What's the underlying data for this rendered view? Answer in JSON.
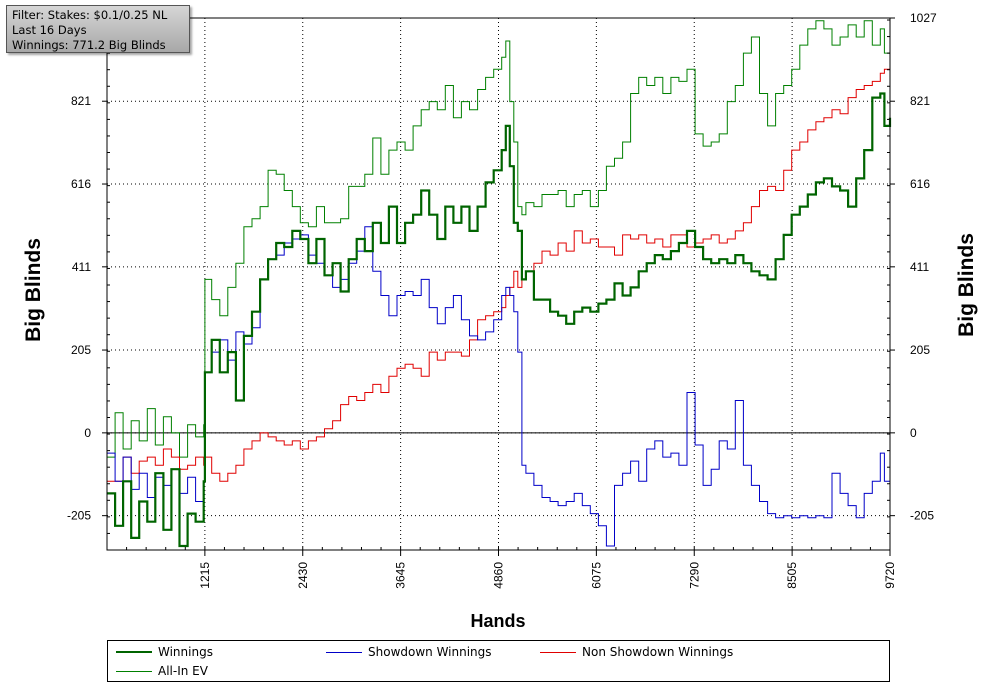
{
  "filter": {
    "line1": "Filter: Stakes: $0.1/0.25 NL",
    "line2": "Last 16 Days",
    "line3": "Winnings: 771.2 Big Blinds"
  },
  "chart_data": {
    "type": "line",
    "title": "",
    "xlabel": "Hands",
    "ylabel": "Big Blinds",
    "ylabel_right": "Big Blinds",
    "xlim": [
      0,
      9720
    ],
    "ylim": [
      -290,
      1027
    ],
    "x_ticks": [
      1215,
      2430,
      3645,
      4860,
      6075,
      7290,
      8505,
      9720
    ],
    "x_tick_labels": [
      "1215",
      "2430",
      "3645",
      "4860",
      "6075",
      "7290",
      "8505",
      "9720"
    ],
    "y_ticks": [
      -205,
      0,
      205,
      411,
      616,
      821,
      1027
    ],
    "y_tick_labels": [
      "-205",
      "0",
      "205",
      "411",
      "616",
      "821",
      "1027"
    ],
    "grid": true,
    "legend_position": "bottom",
    "series": [
      {
        "name": "Winnings",
        "color": "#006400",
        "style": "thick",
        "x": [
          0,
          100,
          200,
          300,
          400,
          500,
          600,
          700,
          800,
          900,
          1000,
          1100,
          1200,
          1215,
          1300,
          1400,
          1500,
          1600,
          1700,
          1800,
          1900,
          2000,
          2100,
          2200,
          2300,
          2400,
          2500,
          2600,
          2700,
          2800,
          2900,
          3000,
          3100,
          3200,
          3300,
          3400,
          3500,
          3600,
          3700,
          3800,
          3900,
          4000,
          4100,
          4200,
          4300,
          4400,
          4500,
          4600,
          4700,
          4800,
          4900,
          4950,
          5000,
          5050,
          5100,
          5150,
          5200,
          5300,
          5400,
          5500,
          5600,
          5700,
          5800,
          5900,
          6000,
          6100,
          6200,
          6300,
          6400,
          6500,
          6600,
          6700,
          6800,
          6900,
          7000,
          7100,
          7200,
          7300,
          7400,
          7500,
          7600,
          7700,
          7800,
          7900,
          8000,
          8100,
          8200,
          8300,
          8400,
          8500,
          8600,
          8700,
          8800,
          8900,
          9000,
          9100,
          9200,
          9300,
          9400,
          9500,
          9600,
          9650,
          9720
        ],
        "y": [
          -150,
          -230,
          -120,
          -260,
          -170,
          -220,
          -100,
          -240,
          -90,
          -280,
          -200,
          -220,
          -120,
          150,
          230,
          150,
          200,
          80,
          240,
          300,
          380,
          430,
          470,
          460,
          500,
          480,
          420,
          480,
          390,
          420,
          350,
          430,
          480,
          450,
          520,
          470,
          560,
          470,
          520,
          540,
          600,
          540,
          480,
          560,
          520,
          560,
          500,
          560,
          620,
          650,
          700,
          760,
          660,
          520,
          500,
          380,
          400,
          330,
          330,
          300,
          290,
          270,
          300,
          310,
          300,
          320,
          330,
          370,
          340,
          360,
          400,
          420,
          440,
          430,
          450,
          470,
          500,
          460,
          430,
          420,
          430,
          420,
          440,
          420,
          400,
          390,
          380,
          430,
          490,
          540,
          560,
          590,
          620,
          630,
          610,
          600,
          560,
          630,
          700,
          830,
          840,
          760,
          780
        ]
      },
      {
        "name": "Showdown Winnings",
        "color": "#0000c8",
        "style": "thin",
        "x": [
          0,
          100,
          200,
          300,
          400,
          500,
          600,
          700,
          800,
          900,
          1000,
          1100,
          1200,
          1215,
          1300,
          1400,
          1500,
          1600,
          1700,
          1800,
          1900,
          2000,
          2100,
          2200,
          2300,
          2400,
          2500,
          2600,
          2700,
          2800,
          2900,
          3000,
          3100,
          3200,
          3300,
          3400,
          3500,
          3600,
          3700,
          3800,
          3900,
          4000,
          4100,
          4200,
          4300,
          4400,
          4500,
          4600,
          4700,
          4800,
          4900,
          4950,
          5000,
          5050,
          5100,
          5150,
          5200,
          5300,
          5400,
          5500,
          5600,
          5700,
          5800,
          5900,
          6000,
          6100,
          6200,
          6300,
          6400,
          6500,
          6600,
          6700,
          6800,
          6900,
          7000,
          7100,
          7200,
          7300,
          7400,
          7500,
          7600,
          7700,
          7800,
          7900,
          8000,
          8100,
          8200,
          8300,
          8400,
          8500,
          8600,
          8700,
          8800,
          8900,
          9000,
          9100,
          9200,
          9300,
          9400,
          9500,
          9600,
          9650,
          9720
        ],
        "y": [
          -50,
          -120,
          -60,
          -140,
          -100,
          -160,
          -110,
          -130,
          -90,
          -150,
          -110,
          -170,
          -120,
          150,
          200,
          230,
          180,
          250,
          220,
          260,
          380,
          430,
          440,
          470,
          480,
          490,
          440,
          420,
          390,
          360,
          380,
          420,
          450,
          510,
          400,
          340,
          290,
          340,
          350,
          340,
          380,
          310,
          270,
          310,
          340,
          280,
          240,
          230,
          250,
          280,
          340,
          360,
          340,
          300,
          200,
          -80,
          -100,
          -130,
          -160,
          -170,
          -180,
          -170,
          -150,
          -180,
          -200,
          -230,
          -280,
          -130,
          -100,
          -70,
          -120,
          -40,
          -20,
          -60,
          -50,
          -80,
          100,
          -30,
          -130,
          -90,
          -20,
          -40,
          80,
          -80,
          -130,
          -170,
          -200,
          -210,
          -205,
          -210,
          -205,
          -210,
          -205,
          -210,
          -100,
          -150,
          -180,
          -210,
          -150,
          -120,
          -50,
          -120,
          -130
        ]
      },
      {
        "name": "Non Showdown Winnings",
        "color": "#e00000",
        "style": "thin",
        "x": [
          0,
          100,
          200,
          300,
          400,
          500,
          600,
          700,
          800,
          900,
          1000,
          1100,
          1200,
          1215,
          1300,
          1400,
          1500,
          1600,
          1700,
          1800,
          1900,
          2000,
          2100,
          2200,
          2300,
          2400,
          2500,
          2600,
          2700,
          2800,
          2900,
          3000,
          3100,
          3200,
          3300,
          3400,
          3500,
          3600,
          3700,
          3800,
          3900,
          4000,
          4100,
          4200,
          4300,
          4400,
          4500,
          4600,
          4700,
          4800,
          4900,
          4950,
          5000,
          5050,
          5100,
          5150,
          5200,
          5300,
          5400,
          5500,
          5600,
          5700,
          5800,
          5900,
          6000,
          6100,
          6200,
          6300,
          6400,
          6500,
          6600,
          6700,
          6800,
          6900,
          7000,
          7100,
          7200,
          7300,
          7400,
          7500,
          7600,
          7700,
          7800,
          7900,
          8000,
          8100,
          8200,
          8300,
          8400,
          8500,
          8600,
          8700,
          8800,
          8900,
          9000,
          9100,
          9200,
          9300,
          9400,
          9500,
          9600,
          9650,
          9720
        ],
        "y": [
          -120,
          -120,
          -60,
          -100,
          -70,
          -60,
          -80,
          -40,
          -60,
          -90,
          -80,
          -60,
          -80,
          -60,
          -100,
          -120,
          -100,
          -80,
          -40,
          -20,
          0,
          -10,
          -20,
          -30,
          -20,
          -40,
          -20,
          -10,
          10,
          30,
          70,
          90,
          80,
          100,
          120,
          100,
          140,
          160,
          170,
          160,
          140,
          200,
          180,
          200,
          200,
          190,
          230,
          280,
          290,
          300,
          310,
          340,
          360,
          400,
          360,
          380,
          400,
          420,
          450,
          440,
          470,
          450,
          500,
          470,
          480,
          460,
          460,
          440,
          490,
          480,
          490,
          470,
          480,
          460,
          490,
          490,
          460,
          470,
          480,
          490,
          470,
          480,
          500,
          520,
          560,
          600,
          610,
          600,
          650,
          700,
          720,
          750,
          770,
          780,
          800,
          790,
          830,
          850,
          860,
          870,
          890,
          900,
          910
        ]
      },
      {
        "name": "All-In EV",
        "color": "#008000",
        "style": "thin",
        "x": [
          0,
          100,
          200,
          300,
          400,
          500,
          600,
          700,
          800,
          900,
          1000,
          1100,
          1200,
          1215,
          1300,
          1400,
          1500,
          1600,
          1700,
          1800,
          1900,
          2000,
          2100,
          2200,
          2300,
          2400,
          2500,
          2600,
          2700,
          2800,
          2900,
          3000,
          3100,
          3200,
          3300,
          3400,
          3500,
          3600,
          3700,
          3800,
          3900,
          4000,
          4100,
          4200,
          4300,
          4400,
          4500,
          4600,
          4700,
          4800,
          4900,
          4950,
          5000,
          5050,
          5100,
          5150,
          5200,
          5300,
          5400,
          5500,
          5600,
          5700,
          5800,
          5900,
          6000,
          6100,
          6200,
          6300,
          6400,
          6500,
          6600,
          6700,
          6800,
          6900,
          7000,
          7100,
          7200,
          7300,
          7400,
          7500,
          7600,
          7700,
          7800,
          7900,
          8000,
          8100,
          8200,
          8300,
          8400,
          8500,
          8600,
          8700,
          8800,
          8900,
          9000,
          9100,
          9200,
          9300,
          9400,
          9500,
          9600,
          9650,
          9720
        ],
        "y": [
          -60,
          50,
          -40,
          30,
          -20,
          60,
          -30,
          40,
          0,
          -60,
          20,
          -10,
          20,
          380,
          330,
          290,
          360,
          420,
          510,
          530,
          560,
          650,
          640,
          600,
          560,
          520,
          510,
          560,
          520,
          520,
          530,
          610,
          610,
          640,
          730,
          640,
          700,
          720,
          700,
          760,
          800,
          820,
          800,
          860,
          780,
          820,
          800,
          850,
          880,
          900,
          930,
          970,
          820,
          720,
          560,
          540,
          570,
          560,
          590,
          590,
          600,
          560,
          590,
          600,
          560,
          600,
          660,
          680,
          720,
          840,
          880,
          860,
          880,
          840,
          880,
          870,
          900,
          740,
          710,
          720,
          740,
          820,
          860,
          940,
          980,
          840,
          760,
          840,
          860,
          900,
          960,
          1000,
          1020,
          1000,
          960,
          980,
          1010,
          980,
          1020,
          960,
          1000,
          940,
          960
        ]
      }
    ]
  },
  "legend": {
    "items": [
      {
        "label": "Winnings",
        "color": "#006400"
      },
      {
        "label": "Showdown Winnings",
        "color": "#0000c8"
      },
      {
        "label": "Non Showdown Winnings",
        "color": "#e00000"
      },
      {
        "label": "All-In EV",
        "color": "#008000"
      }
    ]
  }
}
